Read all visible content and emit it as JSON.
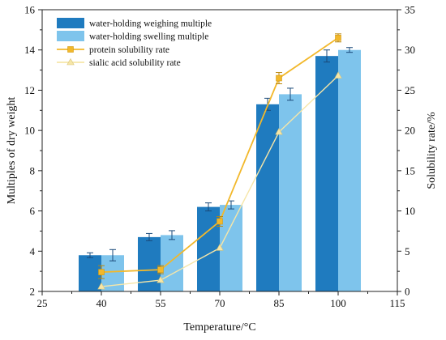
{
  "chart_data": {
    "type": "bar",
    "x_axis": {
      "label": "Temperature/°C",
      "range": [
        25,
        115
      ],
      "ticks": [
        25,
        40,
        55,
        70,
        85,
        100,
        115
      ]
    },
    "y_axis_left": {
      "label": "Multiples of dry weight",
      "range": [
        2,
        16
      ],
      "ticks": [
        2,
        4,
        6,
        8,
        10,
        12,
        14,
        16
      ]
    },
    "y_axis_right": {
      "label": "Solubility rate/%",
      "range": [
        0,
        35
      ],
      "ticks": [
        0,
        5,
        10,
        15,
        20,
        25,
        30,
        35
      ]
    },
    "categories": [
      40,
      55,
      70,
      85,
      100
    ],
    "bar_series": [
      {
        "name": "water-holding weighing multiple",
        "color": "#1f7bbf",
        "axis": "left",
        "values": [
          3.8,
          4.7,
          6.2,
          11.3,
          13.7
        ],
        "errors": [
          0.12,
          0.18,
          0.2,
          0.3,
          0.3
        ]
      },
      {
        "name": "water-holding swelling multiple",
        "color": "#7ec4ec",
        "axis": "left",
        "values": [
          3.8,
          4.8,
          6.3,
          11.8,
          14.0
        ],
        "errors": [
          0.28,
          0.22,
          0.2,
          0.3,
          0.12
        ]
      }
    ],
    "line_series": [
      {
        "name": "protein solubility rate",
        "color": "#f2b82b",
        "marker": "square",
        "axis": "right",
        "values": [
          2.4,
          2.7,
          8.7,
          26.5,
          31.5
        ],
        "errors": [
          0.8,
          0.5,
          0.6,
          0.7,
          0.5
        ]
      },
      {
        "name": "sialic acid solubility rate",
        "color": "#f6e6a8",
        "marker": "triangle",
        "axis": "right",
        "values": [
          0.6,
          1.4,
          5.4,
          19.8,
          26.8
        ],
        "errors": [
          0,
          0,
          0,
          0,
          0
        ]
      }
    ],
    "legend_position": "top-left",
    "grid": false
  }
}
